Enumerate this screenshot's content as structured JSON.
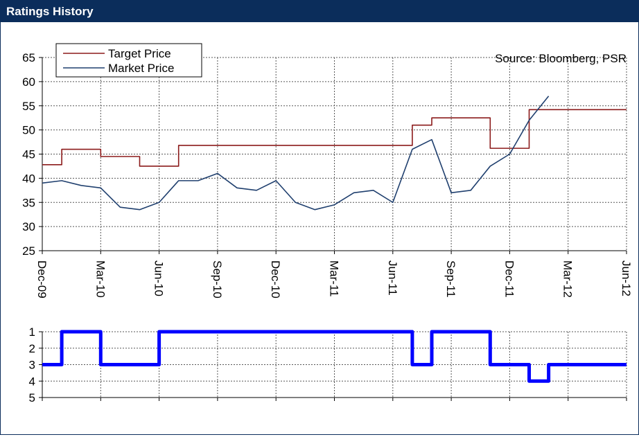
{
  "header": {
    "title": "Ratings History"
  },
  "chart_data": [
    {
      "type": "line",
      "annotation": "Source: Bloomberg, PSR",
      "xlim": [
        "Dec-09",
        "Jun-12"
      ],
      "xticks": [
        "Dec-09",
        "Mar-10",
        "Jun-10",
        "Sep-10",
        "Dec-10",
        "Mar-11",
        "Jun-11",
        "Sep-11",
        "Dec-11",
        "Mar-12",
        "Jun-12"
      ],
      "ylim": [
        25,
        65
      ],
      "yticks": [
        25,
        30,
        35,
        40,
        45,
        50,
        55,
        60,
        65
      ],
      "grid": true,
      "legend": "top-left",
      "series": [
        {
          "name": "Target Price",
          "color": "#8b1a1a",
          "step": true,
          "x": [
            "Dec-09",
            "Jan-10",
            "Mar-10",
            "May-10",
            "Jul-10",
            "Jul-11",
            "Aug-11",
            "Nov-11",
            "Jan-12",
            "Jun-12"
          ],
          "values": [
            42.8,
            46,
            44.5,
            42.5,
            46.8,
            51,
            52.5,
            46.2,
            54.2,
            54.2
          ]
        },
        {
          "name": "Market Price",
          "color": "#1f3f6e",
          "step": false,
          "x": [
            "Dec-09",
            "Jan-10",
            "Feb-10",
            "Mar-10",
            "Apr-10",
            "May-10",
            "Jun-10",
            "Jul-10",
            "Aug-10",
            "Sep-10",
            "Oct-10",
            "Nov-10",
            "Dec-10",
            "Jan-11",
            "Feb-11",
            "Mar-11",
            "Apr-11",
            "May-11",
            "Jun-11",
            "Jul-11",
            "Aug-11",
            "Sep-11",
            "Oct-11",
            "Nov-11",
            "Dec-11",
            "Jan-12",
            "Feb-12"
          ],
          "values": [
            39,
            39.5,
            38.5,
            38,
            34,
            33.5,
            35,
            39.5,
            39.5,
            41,
            38,
            37.5,
            39.5,
            35,
            33.5,
            34.5,
            37,
            37.5,
            35,
            46,
            48,
            37,
            37.5,
            42.5,
            45,
            52,
            57
          ]
        }
      ]
    },
    {
      "type": "line",
      "xlim": [
        "Dec-09",
        "Jun-12"
      ],
      "xticks": [
        "Dec-09",
        "Mar-10",
        "Jun-10",
        "Sep-10",
        "Dec-10",
        "Mar-11",
        "Jun-11",
        "Sep-11",
        "Dec-11",
        "Mar-12",
        "Jun-12"
      ],
      "ylim": [
        5,
        1
      ],
      "yticks": [
        1,
        2,
        3,
        4,
        5
      ],
      "grid": true,
      "series": [
        {
          "color": "#0000ff",
          "step": true,
          "x": [
            "Dec-09",
            "Jan-10",
            "Mar-10",
            "Jun-10",
            "Jul-11",
            "Aug-11",
            "Nov-11",
            "Jan-12",
            "Feb-12",
            "Jun-12"
          ],
          "values": [
            3,
            1,
            3,
            1,
            3,
            1,
            3,
            4,
            3,
            3
          ]
        }
      ]
    }
  ]
}
